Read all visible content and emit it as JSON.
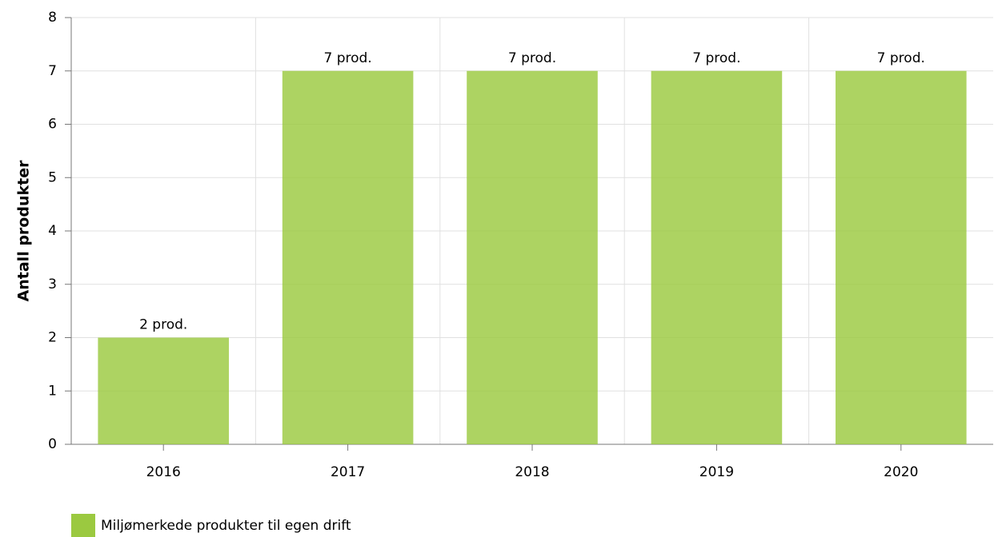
{
  "chart_data": {
    "type": "bar",
    "y_label": "Antall produkter",
    "categories": [
      "2016",
      "2017",
      "2018",
      "2019",
      "2020"
    ],
    "series": [
      {
        "name": "Miljømerkede produkter til egen drift",
        "color": "#9bc940",
        "values": [
          2,
          7,
          7,
          7,
          7
        ],
        "value_labels": [
          "2 prod.",
          "7 prod.",
          "7 prod.",
          "7 prod.",
          "7 prod."
        ]
      }
    ],
    "ylim": [
      0,
      8
    ],
    "yticks": [
      0,
      1,
      2,
      3,
      4,
      5,
      6,
      7,
      8
    ],
    "grid": true,
    "legend": "bottom-left"
  }
}
